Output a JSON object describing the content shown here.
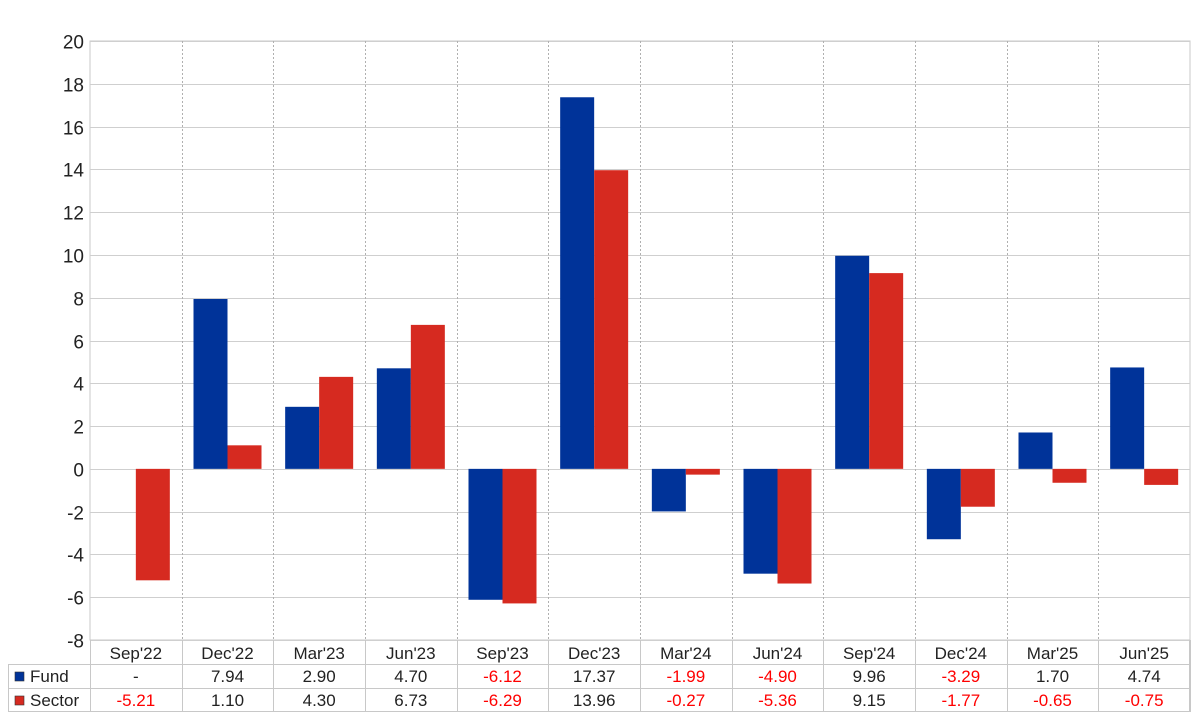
{
  "chart_data": {
    "type": "bar",
    "title": "",
    "xlabel": "",
    "ylabel": "",
    "ylim": [
      -8,
      20
    ],
    "yticks": [
      -8,
      -6,
      -4,
      -2,
      0,
      2,
      4,
      6,
      8,
      10,
      12,
      14,
      16,
      18,
      20
    ],
    "grid": true,
    "legend": "data-table-left",
    "categories": [
      "Sep'22",
      "Dec'22",
      "Mar'23",
      "Jun'23",
      "Sep'23",
      "Dec'23",
      "Mar'24",
      "Jun'24",
      "Sep'24",
      "Dec'24",
      "Mar'25",
      "Jun'25"
    ],
    "series": [
      {
        "name": "Fund",
        "color": "#003399",
        "values": [
          null,
          7.94,
          2.9,
          4.7,
          -6.12,
          17.37,
          -1.99,
          -4.9,
          9.96,
          -3.29,
          1.7,
          4.74
        ],
        "labels": [
          "-",
          "7.94",
          "2.90",
          "4.70",
          "-6.12",
          "17.37",
          "-1.99",
          "-4.90",
          "9.96",
          "-3.29",
          "1.70",
          "4.74"
        ]
      },
      {
        "name": "Sector",
        "color": "#d62a20",
        "values": [
          -5.21,
          1.1,
          4.3,
          6.73,
          -6.29,
          13.96,
          -0.27,
          -5.36,
          9.15,
          -1.77,
          -0.65,
          -0.75
        ],
        "labels": [
          "-5.21",
          "1.10",
          "4.30",
          "6.73",
          "-6.29",
          "13.96",
          "-0.27",
          "-5.36",
          "9.15",
          "-1.77",
          "-0.65",
          "-0.75"
        ]
      }
    ],
    "negative_label_color": "#ff0000"
  }
}
